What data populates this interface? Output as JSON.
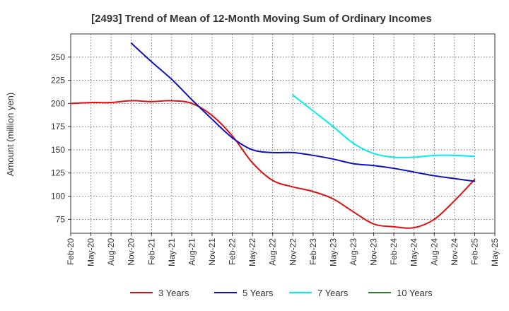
{
  "chart_data": {
    "type": "line",
    "title": "[2493]  Trend of Mean of 12-Month Moving Sum of Ordinary Incomes",
    "xlabel": "",
    "ylabel": "Amount (million yen)",
    "ylim": [
      60,
      275
    ],
    "yticks": [
      75,
      100,
      125,
      150,
      175,
      200,
      225,
      250
    ],
    "grid": true,
    "legend_position": "bottom",
    "categories": [
      "Feb-20",
      "May-20",
      "Aug-20",
      "Nov-20",
      "Feb-21",
      "May-21",
      "Aug-21",
      "Nov-21",
      "Feb-22",
      "May-22",
      "Aug-22",
      "Nov-22",
      "Feb-23",
      "May-23",
      "Aug-23",
      "Nov-23",
      "Feb-24",
      "May-24",
      "Aug-24",
      "Nov-24",
      "Feb-25",
      "May-25"
    ],
    "series": [
      {
        "name": "3 Years",
        "color": "#dd1111",
        "values": [
          200,
          201,
          201,
          203,
          202,
          203,
          200,
          187,
          165,
          136,
          117,
          110,
          105,
          97,
          83,
          70,
          67,
          66,
          75,
          95,
          118,
          null
        ]
      },
      {
        "name": "5 Years",
        "color": "#1010c0",
        "values": [
          null,
          null,
          null,
          265,
          245,
          226,
          204,
          183,
          163,
          150,
          147,
          147,
          144,
          140,
          135,
          133,
          130,
          126,
          122,
          119,
          116,
          null
        ]
      },
      {
        "name": "7 Years",
        "color": "#00eeee",
        "values": [
          null,
          null,
          null,
          null,
          null,
          null,
          null,
          null,
          null,
          null,
          null,
          209,
          192,
          175,
          157,
          146,
          142,
          142,
          144,
          144,
          143,
          null
        ]
      },
      {
        "name": "10 Years",
        "color": "#228822",
        "values": [
          null,
          null,
          null,
          null,
          null,
          null,
          null,
          null,
          null,
          null,
          null,
          null,
          null,
          null,
          null,
          null,
          null,
          null,
          null,
          null,
          null,
          null
        ]
      }
    ]
  }
}
